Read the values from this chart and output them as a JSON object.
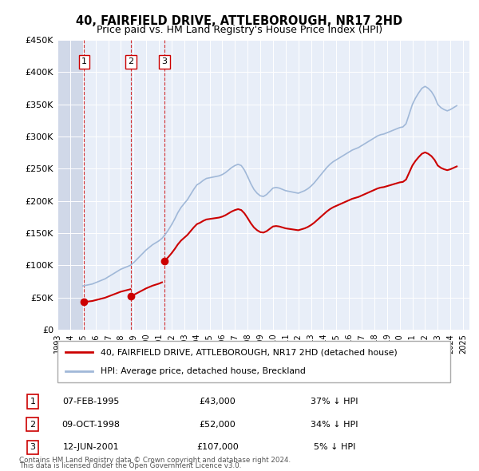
{
  "title": "40, FAIRFIELD DRIVE, ATTLEBOROUGH, NR17 2HD",
  "subtitle": "Price paid vs. HM Land Registry's House Price Index (HPI)",
  "ylim": [
    0,
    450000
  ],
  "yticks": [
    0,
    50000,
    100000,
    150000,
    200000,
    250000,
    300000,
    350000,
    400000,
    450000
  ],
  "ytick_labels": [
    "£0",
    "£50K",
    "£100K",
    "£150K",
    "£200K",
    "£250K",
    "£300K",
    "£350K",
    "£400K",
    "£450K"
  ],
  "xlim_start": 1993.0,
  "xlim_end": 2025.5,
  "transactions": [
    {
      "num": 1,
      "date_str": "07-FEB-1995",
      "date_x": 1995.1,
      "price": 43000,
      "label": "37% ↓ HPI"
    },
    {
      "num": 2,
      "date_str": "09-OCT-1998",
      "date_x": 1998.77,
      "price": 52000,
      "label": "34% ↓ HPI"
    },
    {
      "num": 3,
      "date_str": "12-JUN-2001",
      "date_x": 2001.45,
      "price": 107000,
      "label": "5% ↓ HPI"
    }
  ],
  "hpi_color": "#a0b8d8",
  "price_color": "#cc0000",
  "background_chart": "#e8eef8",
  "background_hatch": "#d0d8e8",
  "legend_line1": "40, FAIRFIELD DRIVE, ATTLEBOROUGH, NR17 2HD (detached house)",
  "legend_line2": "HPI: Average price, detached house, Breckland",
  "footer1": "Contains HM Land Registry data © Crown copyright and database right 2024.",
  "footer2": "This data is licensed under the Open Government Licence v3.0.",
  "hpi_data_x": [
    1995.0,
    1995.25,
    1995.5,
    1995.75,
    1996.0,
    1996.25,
    1996.5,
    1996.75,
    1997.0,
    1997.25,
    1997.5,
    1997.75,
    1998.0,
    1998.25,
    1998.5,
    1998.75,
    1999.0,
    1999.25,
    1999.5,
    1999.75,
    2000.0,
    2000.25,
    2000.5,
    2000.75,
    2001.0,
    2001.25,
    2001.5,
    2001.75,
    2002.0,
    2002.25,
    2002.5,
    2002.75,
    2003.0,
    2003.25,
    2003.5,
    2003.75,
    2004.0,
    2004.25,
    2004.5,
    2004.75,
    2005.0,
    2005.25,
    2005.5,
    2005.75,
    2006.0,
    2006.25,
    2006.5,
    2006.75,
    2007.0,
    2007.25,
    2007.5,
    2007.75,
    2008.0,
    2008.25,
    2008.5,
    2008.75,
    2009.0,
    2009.25,
    2009.5,
    2009.75,
    2010.0,
    2010.25,
    2010.5,
    2010.75,
    2011.0,
    2011.25,
    2011.5,
    2011.75,
    2012.0,
    2012.25,
    2012.5,
    2012.75,
    2013.0,
    2013.25,
    2013.5,
    2013.75,
    2014.0,
    2014.25,
    2014.5,
    2014.75,
    2015.0,
    2015.25,
    2015.5,
    2015.75,
    2016.0,
    2016.25,
    2016.5,
    2016.75,
    2017.0,
    2017.25,
    2017.5,
    2017.75,
    2018.0,
    2018.25,
    2018.5,
    2018.75,
    2019.0,
    2019.25,
    2019.5,
    2019.75,
    2020.0,
    2020.25,
    2020.5,
    2020.75,
    2021.0,
    2021.25,
    2021.5,
    2021.75,
    2022.0,
    2022.25,
    2022.5,
    2022.75,
    2023.0,
    2023.25,
    2023.5,
    2023.75,
    2024.0,
    2024.25,
    2024.5
  ],
  "hpi_data_y": [
    68000,
    69000,
    70000,
    71000,
    73000,
    75000,
    77000,
    79000,
    82000,
    85000,
    88000,
    91000,
    94000,
    96000,
    98000,
    100000,
    104000,
    109000,
    114000,
    119000,
    124000,
    128000,
    132000,
    135000,
    138000,
    142000,
    148000,
    155000,
    163000,
    172000,
    182000,
    190000,
    196000,
    202000,
    210000,
    218000,
    225000,
    228000,
    232000,
    235000,
    236000,
    237000,
    238000,
    239000,
    241000,
    244000,
    248000,
    252000,
    255000,
    257000,
    255000,
    248000,
    238000,
    227000,
    218000,
    212000,
    208000,
    207000,
    210000,
    215000,
    220000,
    221000,
    220000,
    218000,
    216000,
    215000,
    214000,
    213000,
    212000,
    214000,
    216000,
    219000,
    223000,
    228000,
    234000,
    240000,
    246000,
    252000,
    257000,
    261000,
    264000,
    267000,
    270000,
    273000,
    276000,
    279000,
    281000,
    283000,
    286000,
    289000,
    292000,
    295000,
    298000,
    301000,
    303000,
    304000,
    306000,
    308000,
    310000,
    312000,
    314000,
    315000,
    320000,
    335000,
    350000,
    360000,
    368000,
    375000,
    378000,
    375000,
    370000,
    362000,
    350000,
    345000,
    342000,
    340000,
    342000,
    345000,
    348000
  ],
  "table_rows": [
    {
      "num": "1",
      "date": "07-FEB-1995",
      "price": "£43,000",
      "hpi": "37% ↓ HPI"
    },
    {
      "num": "2",
      "date": "09-OCT-1998",
      "price": "£52,000",
      "hpi": "34% ↓ HPI"
    },
    {
      "num": "3",
      "date": "12-JUN-2001",
      "price": "£107,000",
      "hpi": "5% ↓ HPI"
    }
  ]
}
